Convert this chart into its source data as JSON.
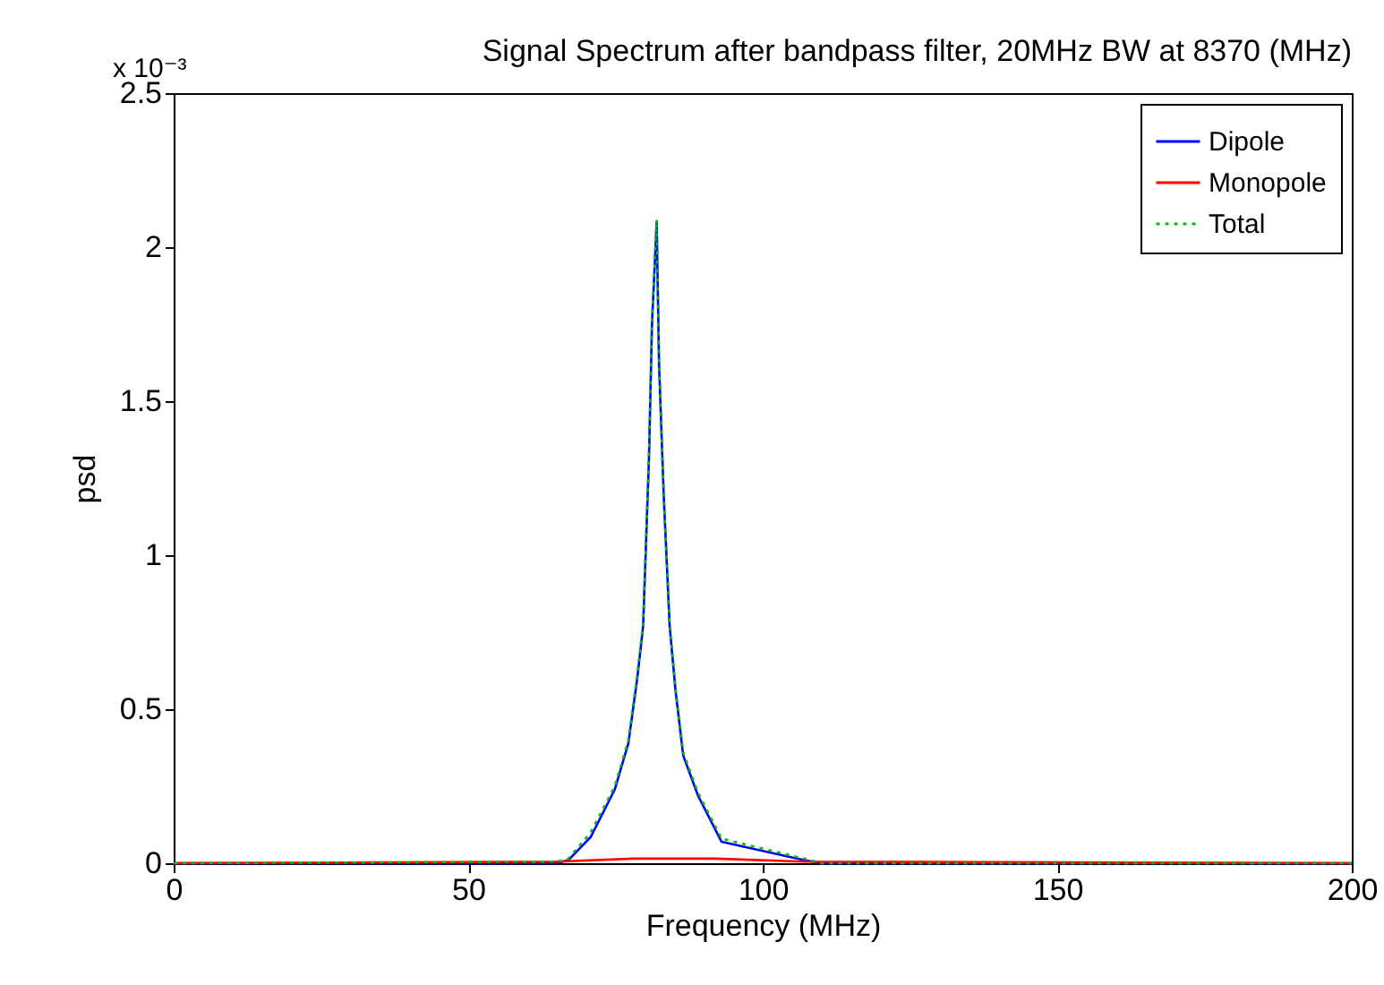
{
  "chart_data": {
    "type": "line",
    "title": "Signal Spectrum after bandpass filter, 20MHz BW at 8370 (MHz)",
    "xlabel": "Frequency (MHz)",
    "ylabel": "psd",
    "annotations": [
      "x 10⁻³"
    ],
    "series": [
      {
        "name": "Dipole",
        "color": "#0000ff",
        "x": [
          0,
          65,
          67,
          70.8,
          74.9,
          77.2,
          78.7,
          79.7,
          80.7,
          81.2,
          82,
          82.4,
          83.2,
          84.2,
          85.2,
          86.5,
          89,
          93,
          107,
          110,
          200
        ],
        "values": [
          0,
          0,
          0.01,
          0.085,
          0.24,
          0.39,
          0.6,
          0.77,
          1.32,
          1.75,
          2.08,
          1.62,
          1.19,
          0.77,
          0.56,
          0.35,
          0.22,
          0.07,
          0.01,
          0,
          0
        ]
      },
      {
        "name": "Monopole",
        "color": "#ff0000",
        "x": [
          0,
          65,
          78,
          92,
          107,
          200
        ],
        "values": [
          0,
          0.005,
          0.015,
          0.015,
          0.005,
          0
        ]
      },
      {
        "name": "Total",
        "color": "#00bf00",
        "line_style": "dotted",
        "x": [
          0,
          65,
          67,
          70.8,
          74.9,
          77.2,
          78.7,
          79.7,
          80.7,
          81.2,
          82,
          82.4,
          83.2,
          84.2,
          85.2,
          86.5,
          89,
          93,
          107,
          110,
          200
        ],
        "values": [
          0,
          0.005,
          0.015,
          0.1,
          0.25,
          0.4,
          0.61,
          0.78,
          1.33,
          1.76,
          2.09,
          1.63,
          1.2,
          0.78,
          0.57,
          0.36,
          0.23,
          0.08,
          0.015,
          0,
          0
        ]
      }
    ],
    "xlim": [
      0,
      200
    ],
    "xticks": [
      0,
      50,
      100,
      150,
      200
    ],
    "ylim": [
      0,
      2.5
    ],
    "yticks": [
      0,
      0.5,
      1,
      1.5,
      2,
      2.5
    ],
    "legend": "top right",
    "grid": false,
    "marker": "none",
    "line_style": "solid"
  }
}
